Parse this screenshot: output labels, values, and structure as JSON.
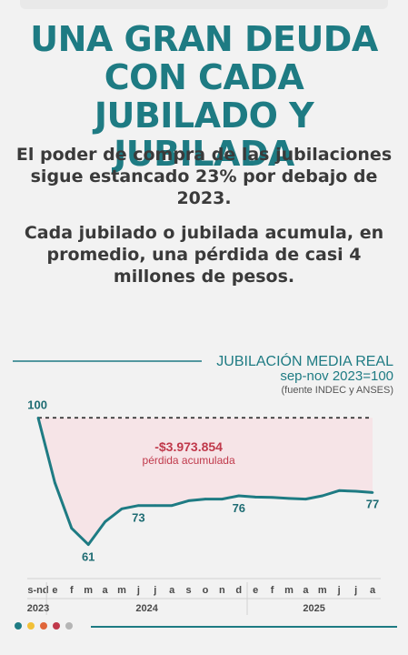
{
  "headline": "UNA GRAN DEUDA CON CADA JUBILADO Y JUBILADA",
  "lead1": "El poder de compra de las jubilaciones sigue estancado 23% por debajo de 2023.",
  "lead2": "Cada jubilado o jubilada acumula, en promedio, una pérdida de casi 4 millones de pesos.",
  "colors": {
    "accent": "#1e7b83",
    "loss": "#c0394b",
    "loss_fill": "#f6e4e7",
    "text": "#3a3a3a",
    "dots": [
      "#1e7b83",
      "#f2c037",
      "#e0663a",
      "#c0394b",
      "#b5b5b5"
    ]
  },
  "chart_data": {
    "type": "area",
    "title": "JUBILACIÓN MEDIA REAL",
    "subtitle": "sep-nov 2023=100",
    "source": "(fuente INDEC y ANSES)",
    "x": [
      "s-nd",
      "e",
      "f",
      "m",
      "a",
      "m",
      "j",
      "j",
      "a",
      "s",
      "o",
      "n",
      "d",
      "e",
      "f",
      "m",
      "a",
      "m",
      "j",
      "j",
      "a"
    ],
    "values": [
      100,
      80,
      66,
      61,
      68,
      72,
      73,
      73,
      73,
      74.5,
      75,
      75,
      76,
      75.6,
      75.5,
      75.2,
      75,
      76,
      77.6,
      77.4,
      77
    ],
    "reference": 100,
    "ylim": [
      55,
      104
    ],
    "labels": [
      {
        "index": 0,
        "text": "100"
      },
      {
        "index": 3,
        "text": "61"
      },
      {
        "index": 6,
        "text": "73"
      },
      {
        "index": 12,
        "text": "76"
      },
      {
        "index": 20,
        "text": "77"
      }
    ],
    "annotation": {
      "value": "-$3.973.854",
      "caption": "pérdida acumulada"
    },
    "years": [
      {
        "label": "2023",
        "start": 0,
        "end": 0
      },
      {
        "label": "2024",
        "start": 1,
        "end": 12
      },
      {
        "label": "2025",
        "start": 13,
        "end": 20
      }
    ]
  }
}
